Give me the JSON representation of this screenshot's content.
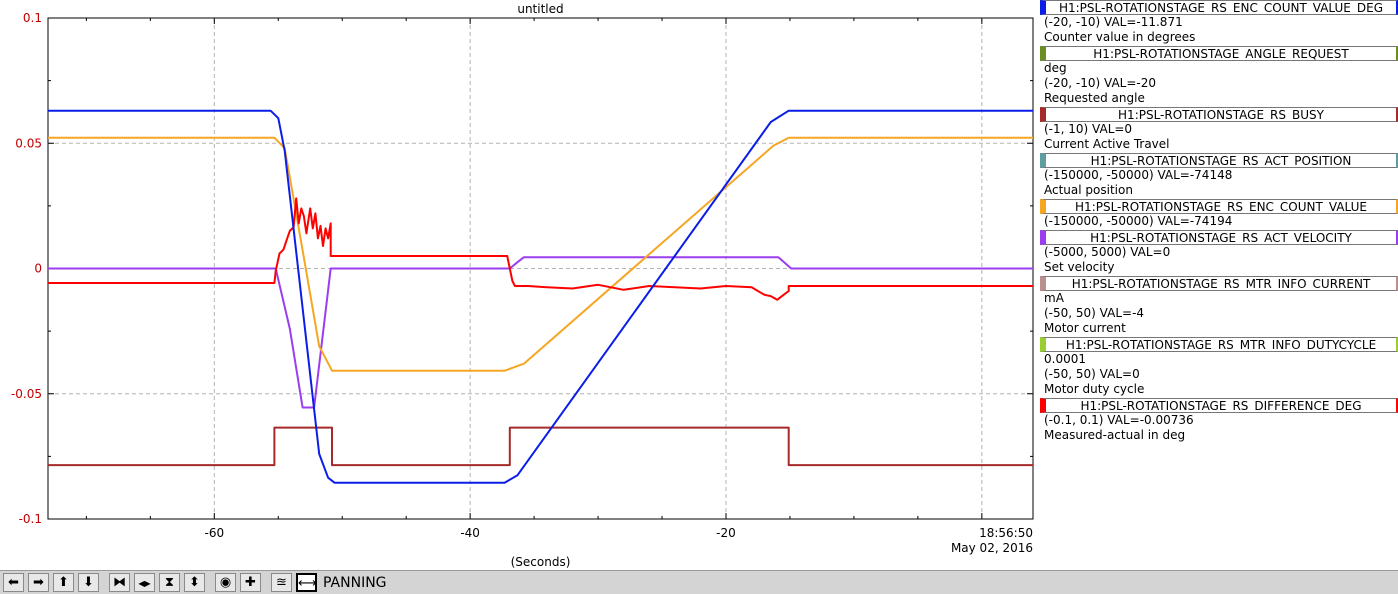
{
  "chart_data": {
    "type": "line",
    "title": "untitled",
    "xlabel": "(Seconds)",
    "xlim": [
      -73,
      4
    ],
    "ylim": [
      -0.1,
      0.1
    ],
    "y_ticks": [
      {
        "value": 0.1,
        "label": "0.1"
      },
      {
        "value": 0.05,
        "label": "0.05"
      },
      {
        "value": 0,
        "label": "0"
      },
      {
        "value": -0.05,
        "label": "-0.05"
      },
      {
        "value": -0.1,
        "label": "-0.1"
      }
    ],
    "x_ticks": [
      {
        "value": -60,
        "label": "-60"
      },
      {
        "value": -40,
        "label": "-40"
      },
      {
        "value": -20,
        "label": "-20"
      }
    ],
    "x_end_time": "18:56:50",
    "x_end_date": "May 02, 2016",
    "grid": true,
    "series": [
      {
        "name": "H1:PSL-ROTATIONSTAGE_RS_BUSY",
        "color": "#a52a2a",
        "step": true,
        "x": [
          -73,
          -55.3,
          -55.3,
          -50.8,
          -50.8,
          -36.9,
          -36.9,
          -15.1,
          -15.1,
          4
        ],
        "y": [
          -0.0785,
          -0.0785,
          -0.0635,
          -0.0635,
          -0.0785,
          -0.0785,
          -0.0635,
          -0.0635,
          -0.0785,
          -0.0785
        ]
      },
      {
        "name": "H1:PSL-ROTATIONSTAGE_RS_ACT_VELOCITY",
        "color": "#9a3ef0",
        "x": [
          -73,
          -55.2,
          -54.1,
          -53.1,
          -52.2,
          -50.9,
          -36.9,
          -36.3,
          -35.8,
          -15.9,
          -14.9,
          4
        ],
        "y": [
          0,
          0,
          -0.024,
          -0.0555,
          -0.0555,
          0,
          0,
          0.0025,
          0.0045,
          0.0045,
          0,
          0
        ]
      },
      {
        "name": "H1:PSL-ROTATIONSTAGE_RS_ENC_COUNT_VALUE",
        "color": "#f5a623",
        "x": [
          -73,
          -55.3,
          -54.5,
          -53.6,
          -51.8,
          -50.8,
          -37.3,
          -35.8,
          -16.3,
          -15.1,
          4
        ],
        "y": [
          0.0522,
          0.0522,
          0.048,
          0.022,
          -0.031,
          -0.0408,
          -0.0408,
          -0.038,
          0.049,
          0.0522,
          0.0522
        ]
      },
      {
        "name": "H1:PSL-ROTATIONSTAGE_RS_DIFFERENCE_DEG",
        "color": "#ff0000",
        "x": [
          -73,
          -55.3,
          -55.2,
          -54.9,
          -54.6,
          -54.3,
          -54.1,
          -53.8,
          -53.6,
          -53.4,
          -53.2,
          -53.0,
          -52.8,
          -52.5,
          -52.3,
          -52.1,
          -51.9,
          -51.7,
          -51.5,
          -51.3,
          -51.1,
          -50.9,
          -50.9,
          -37.1,
          -36.7,
          -36.5,
          -35.5,
          -34,
          -32,
          -30,
          -28,
          -26,
          -24,
          -22,
          -20,
          -18,
          -17,
          -16.5,
          -16,
          -15.5,
          -15.1,
          -15.1,
          4
        ],
        "y": [
          -0.0058,
          -0.0058,
          -0.001,
          0.006,
          0.0075,
          0.012,
          0.015,
          0.0165,
          0.028,
          0.018,
          0.024,
          0.021,
          0.014,
          0.024,
          0.016,
          0.022,
          0.012,
          0.017,
          0.009,
          0.016,
          0.012,
          0.018,
          0.005,
          0.005,
          -0.005,
          -0.007,
          -0.007,
          -0.0075,
          -0.008,
          -0.0065,
          -0.0085,
          -0.007,
          -0.0075,
          -0.008,
          -0.007,
          -0.0075,
          -0.0105,
          -0.011,
          -0.0125,
          -0.0105,
          -0.009,
          -0.007,
          -0.007
        ]
      },
      {
        "name": "H1:PSL-ROTATIONSTAGE_RS_ENC_COUNT_VALUE_DEG",
        "color": "#0a1ee8",
        "x": [
          -73,
          -55.6,
          -55.0,
          -54.5,
          -51.8,
          -51.1,
          -50.6,
          -37.3,
          -36.3,
          -16.5,
          -15.1,
          4
        ],
        "y": [
          0.063,
          0.063,
          0.06,
          0.047,
          -0.074,
          -0.0835,
          -0.0855,
          -0.0855,
          -0.0825,
          0.0585,
          0.063,
          0.063
        ]
      }
    ]
  },
  "legend": [
    {
      "pv": "H1:PSL-ROTATIONSTAGE_RS_ENC_COUNT_VALUE_DEG",
      "color": "#0a1ee8",
      "lines": [
        "(-20, -10) VAL=-11.871",
        "Counter value in degrees"
      ]
    },
    {
      "pv": "H1:PSL-ROTATIONSTAGE_ANGLE_REQUEST",
      "color": "#6b8e23",
      "lines": [
        "deg",
        "(-20, -10)  VAL=-20",
        "Requested angle"
      ]
    },
    {
      "pv": "H1:PSL-ROTATIONSTAGE_RS_BUSY",
      "color": "#a52a2a",
      "lines": [
        "(-1, 10) VAL=0",
        "Current Active Travel"
      ]
    },
    {
      "pv": "H1:PSL-ROTATIONSTAGE_RS_ACT_POSITION",
      "color": "#5f9ea0",
      "lines": [
        "(-150000, -50000) VAL=-74148",
        "Actual position"
      ]
    },
    {
      "pv": "H1:PSL-ROTATIONSTAGE_RS_ENC_COUNT_VALUE",
      "color": "#f5a623",
      "lines": [
        "(-150000, -50000) VAL=-74194"
      ]
    },
    {
      "pv": "H1:PSL-ROTATIONSTAGE_RS_ACT_VELOCITY",
      "color": "#9a3ef0",
      "lines": [
        "(-5000, 5000) VAL=0",
        "Set velocity"
      ]
    },
    {
      "pv": "H1:PSL-ROTATIONSTAGE_RS_MTR_INFO_CURRENT",
      "color": "#bc8f8f",
      "lines": [
        "mA",
        "(-50, 50) VAL=-4",
        "Motor current"
      ]
    },
    {
      "pv": "H1:PSL-ROTATIONSTAGE_RS_MTR_INFO_DUTYCYCLE",
      "color": "#9acd32",
      "lines": [
        "0.0001",
        "(-50, 50) VAL=0",
        "Motor duty cycle"
      ]
    },
    {
      "pv": "H1:PSL-ROTATIONSTAGE_RS_DIFFERENCE_DEG",
      "color": "#ff0000",
      "lines": [
        "(-0.1, 0.1) VAL=-0.00736",
        "Measured-actual in deg"
      ]
    }
  ],
  "toolbar": {
    "buttons": [
      {
        "name": "pan-left-button",
        "icon": "arrow-left-icon",
        "glyph": "⬅"
      },
      {
        "name": "pan-right-button",
        "icon": "arrow-right-icon",
        "glyph": "➡"
      },
      {
        "name": "pan-up-button",
        "icon": "arrow-up-icon",
        "glyph": "⬆"
      },
      {
        "name": "pan-down-button",
        "icon": "arrow-down-icon",
        "glyph": "⬇"
      },
      {
        "name": "zoom-x-in-button",
        "icon": "zoom-x-in-icon",
        "glyph": "⧓"
      },
      {
        "name": "zoom-x-out-button",
        "icon": "zoom-x-out-icon",
        "glyph": "◀▶"
      },
      {
        "name": "zoom-y-in-button",
        "icon": "zoom-y-in-icon",
        "glyph": "⧗"
      },
      {
        "name": "zoom-y-out-button",
        "icon": "zoom-y-out-icon",
        "glyph": "⬍"
      },
      {
        "name": "stop-button",
        "icon": "stop-icon",
        "glyph": "◉"
      },
      {
        "name": "cross-button",
        "icon": "cross-icon",
        "glyph": "✚"
      },
      {
        "name": "auto-scale-button",
        "icon": "autoscale-icon",
        "glyph": "≊"
      },
      {
        "name": "panning-button",
        "icon": "panning-icon",
        "glyph": "⟷",
        "active": true
      }
    ],
    "mode_label": "PANNING"
  }
}
